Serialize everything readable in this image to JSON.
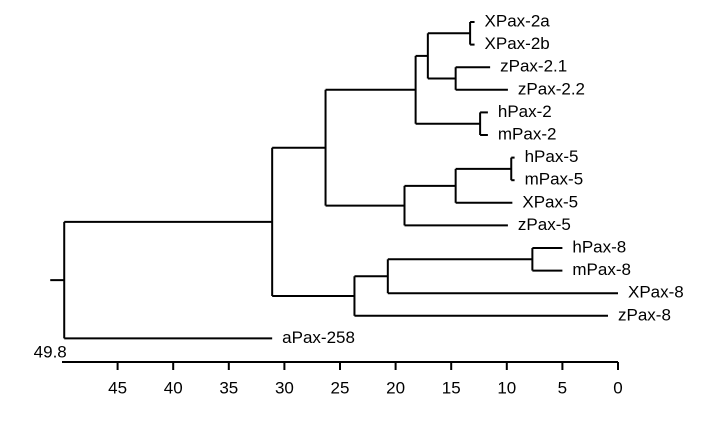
{
  "chart_data": {
    "type": "dendrogram",
    "xlim": [
      50,
      0
    ],
    "xticks": [
      45,
      40,
      35,
      30,
      25,
      20,
      15,
      10,
      5,
      0
    ],
    "tree": {
      "x": 49.8,
      "children": [
        {
          "x": 31.1,
          "children": [
            {
              "x": 26.3,
              "children": [
                {
                  "x": 18.2,
                  "children": [
                    {
                      "x": 17.1,
                      "children": [
                        {
                          "x": 13.3,
                          "children": [
                            {
                              "label": "XPax-2a",
                              "x": 12.9
                            },
                            {
                              "label": "XPax-2b",
                              "x": 12.9
                            }
                          ]
                        },
                        {
                          "x": 14.6,
                          "children": [
                            {
                              "label": "zPax-2.1",
                              "x": 11.5
                            },
                            {
                              "label": "zPax-2.2",
                              "x": 9.9
                            }
                          ]
                        }
                      ]
                    },
                    {
                      "x": 12.4,
                      "children": [
                        {
                          "label": "hPax-2",
                          "x": 11.7
                        },
                        {
                          "label": "mPax-2",
                          "x": 11.7
                        }
                      ]
                    }
                  ]
                },
                {
                  "x": 19.2,
                  "children": [
                    {
                      "x": 14.6,
                      "children": [
                        {
                          "x": 9.6,
                          "children": [
                            {
                              "label": "hPax-5",
                              "x": 9.3
                            },
                            {
                              "label": "mPax-5",
                              "x": 9.3
                            }
                          ]
                        },
                        {
                          "label": "XPax-5",
                          "x": 9.5
                        }
                      ]
                    },
                    {
                      "label": "zPax-5",
                      "x": 9.9
                    }
                  ]
                }
              ]
            },
            {
              "x": 23.7,
              "children": [
                {
                  "x": 20.7,
                  "children": [
                    {
                      "x": 7.7,
                      "children": [
                        {
                          "label": "hPax-8",
                          "x": 5.0
                        },
                        {
                          "label": "mPax-8",
                          "x": 5.0
                        }
                      ]
                    },
                    {
                      "label": "XPax-8",
                      "x": 0
                    }
                  ]
                },
                {
                  "label": "zPax-8",
                  "x": 0.9
                }
              ]
            }
          ]
        },
        {
          "label": "aPax-258",
          "x": 31.1
        }
      ]
    }
  }
}
